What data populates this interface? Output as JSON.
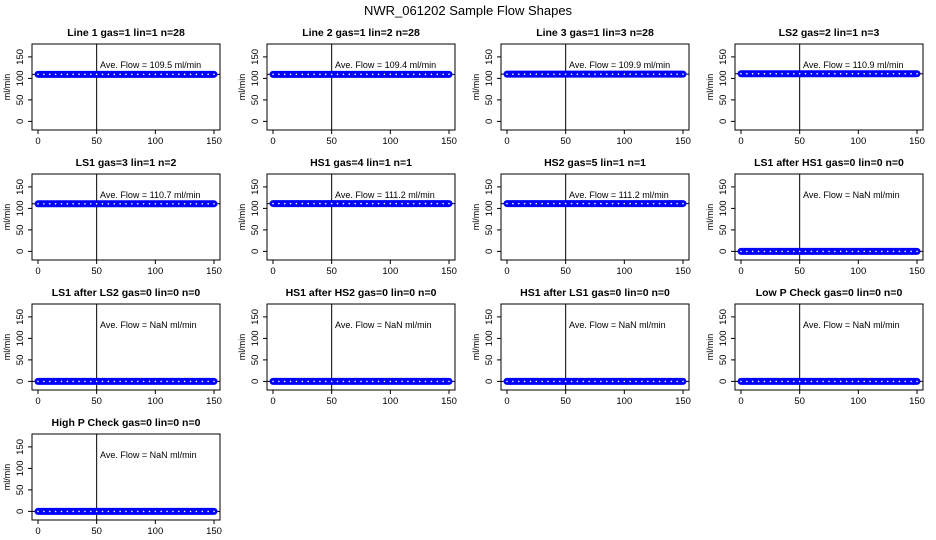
{
  "figure": {
    "title": "NWR_061202  Sample Flow Shapes"
  },
  "chart_data": [
    {
      "type": "scatter",
      "title": "Line 1 gas=1 lin=1 n=28",
      "ylabel": "ml/min",
      "xlim": [
        0,
        150
      ],
      "ylim": [
        -20,
        180
      ],
      "x_ticks": [
        "0",
        "50",
        "100",
        "150"
      ],
      "y_ticks": [
        "0",
        "50",
        "100",
        "150"
      ],
      "x": [
        0,
        150
      ],
      "y": [
        109.5,
        109.5
      ],
      "hline_y": 109.5,
      "vline_x": 50,
      "annotation": "Ave. Flow =  109.5  ml/min",
      "ave_flow": 109.5,
      "point_color": "#0000ff"
    },
    {
      "type": "scatter",
      "title": "Line 2 gas=1 lin=2 n=28",
      "ylabel": "ml/min",
      "xlim": [
        0,
        150
      ],
      "ylim": [
        -20,
        180
      ],
      "x_ticks": [
        "0",
        "50",
        "100",
        "150"
      ],
      "y_ticks": [
        "0",
        "50",
        "100",
        "150"
      ],
      "x": [
        0,
        150
      ],
      "y": [
        109.4,
        109.4
      ],
      "hline_y": 109.4,
      "vline_x": 50,
      "annotation": "Ave. Flow =  109.4  ml/min",
      "ave_flow": 109.4,
      "point_color": "#0000ff"
    },
    {
      "type": "scatter",
      "title": "Line 3 gas=1 lin=3 n=28",
      "ylabel": "ml/min",
      "xlim": [
        0,
        150
      ],
      "ylim": [
        -20,
        180
      ],
      "x_ticks": [
        "0",
        "50",
        "100",
        "150"
      ],
      "y_ticks": [
        "0",
        "50",
        "100",
        "150"
      ],
      "x": [
        0,
        150
      ],
      "y": [
        109.9,
        109.9
      ],
      "hline_y": 109.9,
      "vline_x": 50,
      "annotation": "Ave. Flow =  109.9  ml/min",
      "ave_flow": 109.9,
      "point_color": "#0000ff"
    },
    {
      "type": "scatter",
      "title": "LS2 gas=2 lin=1 n=3",
      "ylabel": "ml/min",
      "xlim": [
        0,
        150
      ],
      "ylim": [
        -20,
        180
      ],
      "x_ticks": [
        "0",
        "50",
        "100",
        "150"
      ],
      "y_ticks": [
        "0",
        "50",
        "100",
        "150"
      ],
      "x": [
        0,
        150
      ],
      "y": [
        110.9,
        110.9
      ],
      "hline_y": 110.9,
      "vline_x": 50,
      "annotation": "Ave. Flow =  110.9  ml/min",
      "ave_flow": 110.9,
      "point_color": "#0000ff"
    },
    {
      "type": "scatter",
      "title": "LS1 gas=3 lin=1 n=2",
      "ylabel": "ml/min",
      "xlim": [
        0,
        150
      ],
      "ylim": [
        -20,
        180
      ],
      "x_ticks": [
        "0",
        "50",
        "100",
        "150"
      ],
      "y_ticks": [
        "0",
        "50",
        "100",
        "150"
      ],
      "x": [
        0,
        150
      ],
      "y": [
        110.7,
        110.7
      ],
      "hline_y": 110.7,
      "vline_x": 50,
      "annotation": "Ave. Flow =  110.7  ml/min",
      "ave_flow": 110.7,
      "point_color": "#0000ff"
    },
    {
      "type": "scatter",
      "title": "HS1 gas=4 lin=1 n=1",
      "ylabel": "ml/min",
      "xlim": [
        0,
        150
      ],
      "ylim": [
        -20,
        180
      ],
      "x_ticks": [
        "0",
        "50",
        "100",
        "150"
      ],
      "y_ticks": [
        "0",
        "50",
        "100",
        "150"
      ],
      "x": [
        0,
        150
      ],
      "y": [
        111.2,
        111.2
      ],
      "hline_y": 111.2,
      "vline_x": 50,
      "annotation": "Ave. Flow =  111.2  ml/min",
      "ave_flow": 111.2,
      "point_color": "#0000ff"
    },
    {
      "type": "scatter",
      "title": "HS2 gas=5 lin=1 n=1",
      "ylabel": "ml/min",
      "xlim": [
        0,
        150
      ],
      "ylim": [
        -20,
        180
      ],
      "x_ticks": [
        "0",
        "50",
        "100",
        "150"
      ],
      "y_ticks": [
        "0",
        "50",
        "100",
        "150"
      ],
      "x": [
        0,
        150
      ],
      "y": [
        111.2,
        111.2
      ],
      "hline_y": 111.2,
      "vline_x": 50,
      "annotation": "Ave. Flow =  111.2  ml/min",
      "ave_flow": 111.2,
      "point_color": "#0000ff"
    },
    {
      "type": "scatter",
      "title": "LS1 after HS1 gas=0 lin=0 n=0",
      "ylabel": "ml/min",
      "xlim": [
        0,
        150
      ],
      "ylim": [
        -20,
        180
      ],
      "x_ticks": [
        "0",
        "50",
        "100",
        "150"
      ],
      "y_ticks": [
        "0",
        "50",
        "100",
        "150"
      ],
      "x": [
        0,
        150
      ],
      "y": [
        0,
        0
      ],
      "hline_y": 0,
      "vline_x": 50,
      "annotation": "Ave. Flow =  NaN  ml/min",
      "ave_flow": null,
      "point_color": "#0000ff"
    },
    {
      "type": "scatter",
      "title": "LS1 after LS2 gas=0 lin=0 n=0",
      "ylabel": "ml/min",
      "xlim": [
        0,
        150
      ],
      "ylim": [
        -20,
        180
      ],
      "x_ticks": [
        "0",
        "50",
        "100",
        "150"
      ],
      "y_ticks": [
        "0",
        "50",
        "100",
        "150"
      ],
      "x": [
        0,
        150
      ],
      "y": [
        0,
        0
      ],
      "hline_y": 0,
      "vline_x": 50,
      "annotation": "Ave. Flow =  NaN  ml/min",
      "ave_flow": null,
      "point_color": "#0000ff"
    },
    {
      "type": "scatter",
      "title": "HS1 after HS2 gas=0 lin=0 n=0",
      "ylabel": "ml/min",
      "xlim": [
        0,
        150
      ],
      "ylim": [
        -20,
        180
      ],
      "x_ticks": [
        "0",
        "50",
        "100",
        "150"
      ],
      "y_ticks": [
        "0",
        "50",
        "100",
        "150"
      ],
      "x": [
        0,
        150
      ],
      "y": [
        0,
        0
      ],
      "hline_y": 0,
      "vline_x": 50,
      "annotation": "Ave. Flow =  NaN  ml/min",
      "ave_flow": null,
      "point_color": "#0000ff"
    },
    {
      "type": "scatter",
      "title": "HS1 after LS1 gas=0 lin=0 n=0",
      "ylabel": "ml/min",
      "xlim": [
        0,
        150
      ],
      "ylim": [
        -20,
        180
      ],
      "x_ticks": [
        "0",
        "50",
        "100",
        "150"
      ],
      "y_ticks": [
        "0",
        "50",
        "100",
        "150"
      ],
      "x": [
        0,
        150
      ],
      "y": [
        0,
        0
      ],
      "hline_y": 0,
      "vline_x": 50,
      "annotation": "Ave. Flow =  NaN  ml/min",
      "ave_flow": null,
      "point_color": "#0000ff"
    },
    {
      "type": "scatter",
      "title": "Low P Check gas=0 lin=0 n=0",
      "ylabel": "ml/min",
      "xlim": [
        0,
        150
      ],
      "ylim": [
        -20,
        180
      ],
      "x_ticks": [
        "0",
        "50",
        "100",
        "150"
      ],
      "y_ticks": [
        "0",
        "50",
        "100",
        "150"
      ],
      "x": [
        0,
        150
      ],
      "y": [
        0,
        0
      ],
      "hline_y": 0,
      "vline_x": 50,
      "annotation": "Ave. Flow =  NaN  ml/min",
      "ave_flow": null,
      "point_color": "#0000ff"
    },
    {
      "type": "scatter",
      "title": "High P Check gas=0 lin=0 n=0",
      "ylabel": "ml/min",
      "xlim": [
        0,
        150
      ],
      "ylim": [
        -20,
        180
      ],
      "x_ticks": [
        "0",
        "50",
        "100",
        "150"
      ],
      "y_ticks": [
        "0",
        "50",
        "100",
        "150"
      ],
      "x": [
        0,
        150
      ],
      "y": [
        0,
        0
      ],
      "hline_y": 0,
      "vline_x": 50,
      "annotation": "Ave. Flow =  NaN  ml/min",
      "ave_flow": null,
      "point_color": "#0000ff"
    }
  ]
}
